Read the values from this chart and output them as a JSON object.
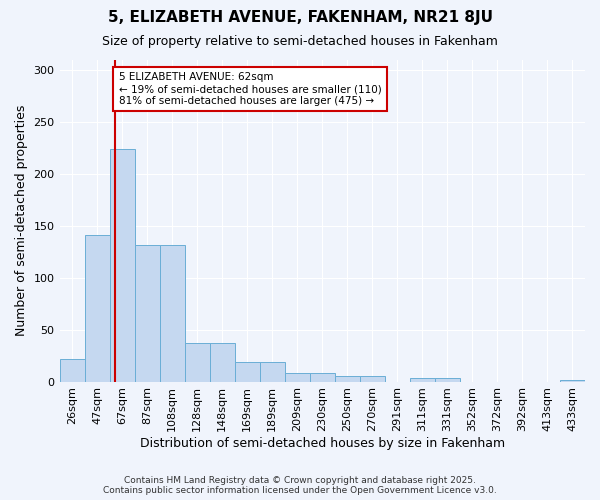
{
  "title": "5, ELIZABETH AVENUE, FAKENHAM, NR21 8JU",
  "subtitle": "Size of property relative to semi-detached houses in Fakenham",
  "xlabel": "Distribution of semi-detached houses by size in Fakenham",
  "ylabel": "Number of semi-detached properties",
  "bin_labels": [
    "26sqm",
    "47sqm",
    "67sqm",
    "87sqm",
    "108sqm",
    "128sqm",
    "148sqm",
    "169sqm",
    "189sqm",
    "209sqm",
    "230sqm",
    "250sqm",
    "270sqm",
    "291sqm",
    "311sqm",
    "331sqm",
    "352sqm",
    "372sqm",
    "392sqm",
    "413sqm",
    "433sqm"
  ],
  "bar_values": [
    22,
    141,
    224,
    132,
    132,
    37,
    37,
    19,
    19,
    8,
    8,
    5,
    5,
    0,
    3,
    3,
    0,
    0,
    0,
    0,
    2
  ],
  "bar_color": "#c5d8f0",
  "bar_edge_color": "#6aaed6",
  "bg_color": "#f0f4fc",
  "grid_color": "#ffffff",
  "vline_color": "#cc0000",
  "annotation_text": "5 ELIZABETH AVENUE: 62sqm\n← 19% of semi-detached houses are smaller (110)\n81% of semi-detached houses are larger (475) →",
  "annotation_box_edgecolor": "#cc0000",
  "footer": "Contains HM Land Registry data © Crown copyright and database right 2025.\nContains public sector information licensed under the Open Government Licence v3.0.",
  "ylim": [
    0,
    310
  ],
  "yticks": [
    0,
    50,
    100,
    150,
    200,
    250,
    300
  ],
  "title_fontsize": 11,
  "subtitle_fontsize": 9,
  "axis_label_fontsize": 9,
  "tick_fontsize": 8
}
